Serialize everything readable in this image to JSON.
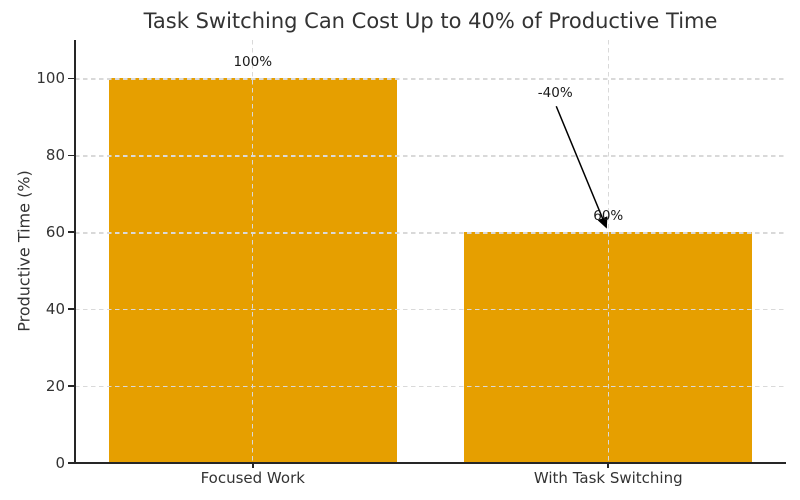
{
  "chart_data": {
    "type": "bar",
    "title": "Task Switching Can Cost Up to 40% of Productive Time",
    "categories": [
      "Focused Work",
      "With Task Switching"
    ],
    "values": [
      100,
      60
    ],
    "bar_value_labels": [
      "100%",
      "60%"
    ],
    "xlabel": "",
    "ylabel": "Productive Time (%)",
    "ylim": [
      0,
      110
    ],
    "yticks": [
      0,
      20,
      40,
      60,
      80,
      100
    ],
    "legend": "none",
    "grid": "dashed light-gray horizontal and vertical gridlines, drawn over bars",
    "bar_color": "#E69F00",
    "arrow_annotation": {
      "text": "-40%",
      "points_to": "top of the With Task Switching bar (60%)"
    }
  },
  "colors": {
    "bar": "#E69F00",
    "background": "#ffffff",
    "grid": "#d9d9d9",
    "spine": "#262626",
    "text": "#333333",
    "annotation_text": "#1a1a1a",
    "arrow": "#000000"
  }
}
